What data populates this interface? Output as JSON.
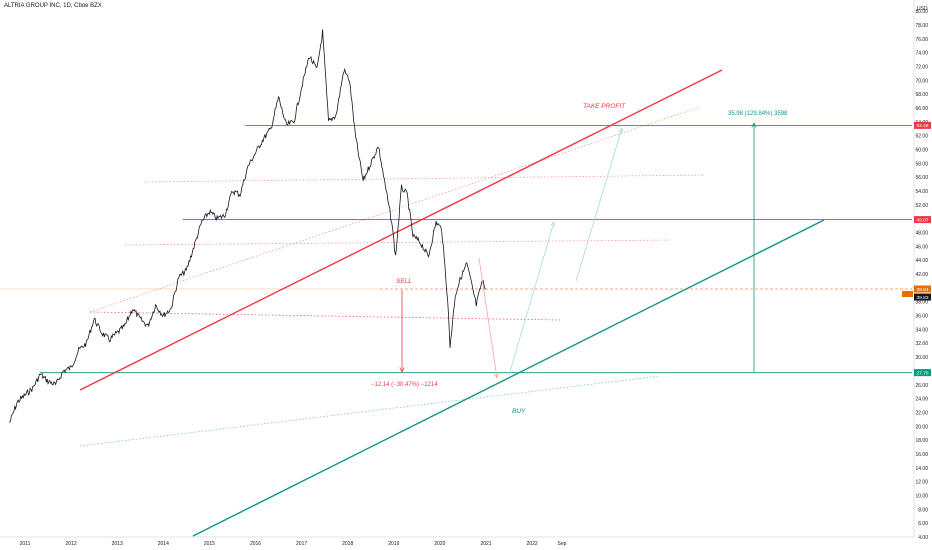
{
  "header": {
    "symbol_title": "ALTRIA GROUP INC, 1D, Cboe BZX"
  },
  "axis": {
    "currency": "USD"
  },
  "chart_data": {
    "type": "line",
    "title": "ALTRIA GROUP INC, 1D, Cboe BZX",
    "ylabel": "USD",
    "x_ticks": [
      "2011",
      "2012",
      "2013",
      "2014",
      "2015",
      "2016",
      "2017",
      "2018",
      "2019",
      "2020",
      "2021",
      "2022",
      "Sep"
    ],
    "y_ticks": [
      80,
      78,
      76,
      74,
      72,
      70,
      68,
      66,
      64,
      62,
      60,
      58,
      56,
      54,
      52,
      50,
      48,
      46,
      44,
      42,
      40,
      38,
      36,
      34,
      32,
      30,
      28,
      26,
      24,
      22,
      20,
      18,
      16,
      14,
      12,
      10,
      8,
      6,
      4
    ],
    "ylim": [
      4,
      80
    ],
    "series": [
      {
        "values": [
          [
            "2010-09-01",
            20.5
          ],
          [
            "2010-11-01",
            23.5
          ],
          [
            "2011-01-01",
            24.5
          ],
          [
            "2011-03-01",
            25.5
          ],
          [
            "2011-05-01",
            27.5
          ],
          [
            "2011-07-01",
            26.5
          ],
          [
            "2011-09-01",
            26.0
          ],
          [
            "2011-11-01",
            28.0
          ],
          [
            "2012-01-01",
            28.5
          ],
          [
            "2012-03-01",
            31.0
          ],
          [
            "2012-05-01",
            32.0
          ],
          [
            "2012-07-01",
            35.5
          ],
          [
            "2012-09-01",
            33.5
          ],
          [
            "2012-11-01",
            32.5
          ],
          [
            "2013-01-01",
            33.5
          ],
          [
            "2013-03-01",
            34.5
          ],
          [
            "2013-05-01",
            37.0
          ],
          [
            "2013-07-01",
            35.5
          ],
          [
            "2013-09-01",
            34.5
          ],
          [
            "2013-11-01",
            37.5
          ],
          [
            "2014-01-01",
            36.0
          ],
          [
            "2014-03-01",
            37.0
          ],
          [
            "2014-05-01",
            41.5
          ],
          [
            "2014-07-01",
            42.5
          ],
          [
            "2014-09-01",
            46.0
          ],
          [
            "2014-11-01",
            49.5
          ],
          [
            "2015-01-01",
            51.0
          ],
          [
            "2015-03-01",
            50.0
          ],
          [
            "2015-05-01",
            50.5
          ],
          [
            "2015-07-01",
            54.0
          ],
          [
            "2015-09-01",
            53.5
          ],
          [
            "2015-11-01",
            57.5
          ],
          [
            "2016-01-01",
            59.5
          ],
          [
            "2016-03-01",
            61.5
          ],
          [
            "2016-05-01",
            63.0
          ],
          [
            "2016-07-01",
            67.5
          ],
          [
            "2016-09-01",
            63.5
          ],
          [
            "2016-11-01",
            64.0
          ],
          [
            "2017-01-01",
            69.0
          ],
          [
            "2017-03-01",
            73.5
          ],
          [
            "2017-05-01",
            71.5
          ],
          [
            "2017-06-15",
            77.0
          ],
          [
            "2017-08-01",
            64.0
          ],
          [
            "2017-10-01",
            65.0
          ],
          [
            "2017-12-01",
            71.5
          ],
          [
            "2018-01-15",
            70.0
          ],
          [
            "2018-03-01",
            62.0
          ],
          [
            "2018-05-01",
            55.5
          ],
          [
            "2018-07-01",
            58.0
          ],
          [
            "2018-09-01",
            60.5
          ],
          [
            "2018-11-01",
            54.0
          ],
          [
            "2018-12-15",
            49.5
          ],
          [
            "2019-01-15",
            44.5
          ],
          [
            "2019-03-01",
            54.5
          ],
          [
            "2019-04-15",
            53.5
          ],
          [
            "2019-06-01",
            47.5
          ],
          [
            "2019-08-01",
            46.5
          ],
          [
            "2019-10-01",
            44.5
          ],
          [
            "2019-12-01",
            49.5
          ],
          [
            "2020-01-15",
            48.5
          ],
          [
            "2020-03-01",
            38.5
          ],
          [
            "2020-03-20",
            31.5
          ],
          [
            "2020-05-01",
            39.0
          ],
          [
            "2020-06-15",
            41.5
          ],
          [
            "2020-08-01",
            43.5
          ],
          [
            "2020-09-15",
            40.0
          ],
          [
            "2020-10-15",
            37.5
          ],
          [
            "2020-12-01",
            41.0
          ],
          [
            "2021-01-01",
            39.84
          ]
        ]
      }
    ],
    "levels": [
      {
        "label": "63.48",
        "value": 63.48,
        "color": "#f23645"
      },
      {
        "label": "49.87",
        "value": 49.87,
        "color": "#f23645"
      },
      {
        "label": "39.84",
        "value": 39.84,
        "color": "#ef6c00"
      },
      {
        "label": "27.75",
        "value": 27.75,
        "color": "#089981"
      }
    ],
    "price_tags": [
      {
        "label": "39.84",
        "value": 39.84,
        "color": "#ef6c00"
      },
      {
        "label": "39.83",
        "value": 39.83,
        "color": "#131722"
      }
    ],
    "annotations": {
      "take_profit": "TAKE PROFIT",
      "sell": "SELL",
      "buy": "BUY",
      "gain_measure": "35.98 (129.84%) 3598",
      "loss_measure": "−12.14 (−30.47%) −1214"
    },
    "colors": {
      "bearish": "#f23645",
      "bullish": "#089981",
      "candles": "#131722",
      "last_price": "#ef6c00"
    }
  }
}
